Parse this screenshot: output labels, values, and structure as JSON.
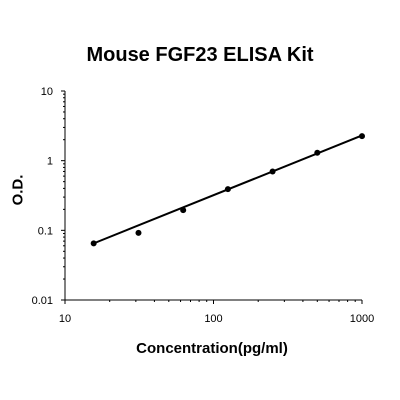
{
  "chart_data": {
    "type": "scatter",
    "title": "Mouse FGF23 ELISA Kit",
    "xlabel": "Concentration(pg/ml)",
    "ylabel": "O.D.",
    "x_scale": "log",
    "y_scale": "log",
    "xlim": [
      10,
      1000
    ],
    "ylim": [
      0.01,
      10
    ],
    "x_ticks": [
      10,
      100,
      1000
    ],
    "x_tick_labels": [
      "10",
      "100",
      "1000"
    ],
    "y_ticks": [
      0.01,
      0.1,
      1,
      10
    ],
    "y_tick_labels": [
      "0.01",
      "0.1",
      "1",
      "10"
    ],
    "grid": false,
    "series": [
      {
        "points": [
          {
            "x": 15.6,
            "y": 0.065
          },
          {
            "x": 31.25,
            "y": 0.092
          },
          {
            "x": 62.5,
            "y": 0.195
          },
          {
            "x": 125,
            "y": 0.39
          },
          {
            "x": 250,
            "y": 0.7
          },
          {
            "x": 500,
            "y": 1.3
          },
          {
            "x": 1000,
            "y": 2.25
          }
        ],
        "fit_line": {
          "x": [
            15.6,
            1000
          ],
          "y": [
            0.065,
            2.3
          ]
        },
        "color": "#000000"
      }
    ]
  }
}
